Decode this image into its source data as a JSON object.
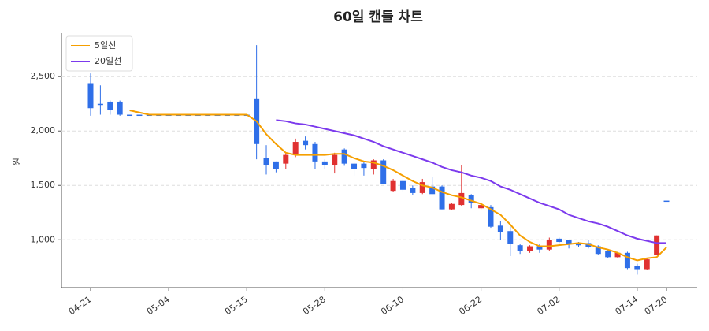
{
  "chart_data": {
    "type": "candlestick",
    "title": "60일 캔들 차트",
    "ylabel": "원",
    "categories": [
      "04-21",
      null,
      null,
      null,
      null,
      null,
      null,
      null,
      "05-04",
      null,
      null,
      null,
      null,
      null,
      null,
      null,
      "05-15",
      null,
      null,
      null,
      null,
      null,
      null,
      null,
      "05-28",
      null,
      null,
      null,
      null,
      null,
      null,
      null,
      "06-10",
      null,
      null,
      null,
      null,
      null,
      null,
      null,
      "06-22",
      null,
      null,
      null,
      null,
      null,
      null,
      null,
      "07-02",
      null,
      null,
      null,
      null,
      null,
      null,
      null,
      "07-14",
      null,
      null,
      "07-20"
    ],
    "open": [
      2440,
      2250,
      2270,
      2270,
      2150,
      2150,
      2150,
      2150,
      2150,
      2150,
      2150,
      2150,
      2150,
      2150,
      2150,
      2150,
      2150,
      2300,
      1750,
      1720,
      1700,
      1790,
      1910,
      1880,
      1720,
      1690,
      1830,
      1700,
      1700,
      1650,
      1730,
      1450,
      1540,
      1480,
      1430,
      1490,
      1490,
      1280,
      1320,
      1410,
      1290,
      1300,
      1130,
      1080,
      950,
      900,
      940,
      910,
      1010,
      1000,
      960,
      970,
      940,
      900,
      840,
      880,
      760,
      730,
      860,
      1360
    ],
    "high": [
      2530,
      2420,
      2280,
      2280,
      2150,
      2150,
      2150,
      2150,
      2150,
      2150,
      2150,
      2150,
      2150,
      2150,
      2150,
      2150,
      2150,
      2790,
      1870,
      1720,
      1800,
      1930,
      1950,
      1900,
      1740,
      1800,
      1840,
      1720,
      1720,
      1740,
      1740,
      1560,
      1560,
      1500,
      1560,
      1580,
      1500,
      1340,
      1690,
      1420,
      1340,
      1320,
      1170,
      1120,
      960,
      950,
      960,
      1020,
      1020,
      1000,
      980,
      1000,
      950,
      910,
      890,
      890,
      780,
      830,
      1040,
      1360
    ],
    "low": [
      2140,
      2150,
      2150,
      2140,
      2150,
      2150,
      2150,
      2150,
      2150,
      2150,
      2150,
      2150,
      2150,
      2150,
      2150,
      2150,
      2150,
      1740,
      1600,
      1620,
      1650,
      1760,
      1830,
      1650,
      1650,
      1610,
      1680,
      1590,
      1590,
      1600,
      1510,
      1440,
      1440,
      1410,
      1420,
      1420,
      1280,
      1270,
      1310,
      1290,
      1280,
      1110,
      1000,
      850,
      870,
      880,
      880,
      900,
      970,
      920,
      930,
      920,
      860,
      830,
      830,
      730,
      680,
      720,
      860,
      1360
    ],
    "close": [
      2210,
      2240,
      2190,
      2150,
      2150,
      2150,
      2150,
      2150,
      2150,
      2150,
      2150,
      2150,
      2150,
      2150,
      2150,
      2150,
      2150,
      1880,
      1690,
      1650,
      1780,
      1900,
      1870,
      1720,
      1690,
      1780,
      1700,
      1650,
      1660,
      1730,
      1510,
      1540,
      1460,
      1430,
      1530,
      1420,
      1280,
      1330,
      1430,
      1340,
      1320,
      1120,
      1070,
      960,
      900,
      940,
      910,
      1000,
      980,
      960,
      950,
      930,
      870,
      840,
      880,
      740,
      730,
      820,
      1040,
      1360
    ],
    "up_color": "#e03131",
    "down_color": "#2f6fe8",
    "series": [
      {
        "name": "5일선",
        "color": "#f59f00",
        "values": [
          null,
          null,
          null,
          null,
          2190,
          2170,
          2150,
          2150,
          2150,
          2150,
          2150,
          2150,
          2150,
          2150,
          2150,
          2150,
          2150,
          2090,
          1970,
          1880,
          1800,
          1780,
          1780,
          1780,
          1780,
          1790,
          1790,
          1750,
          1720,
          1710,
          1680,
          1640,
          1590,
          1540,
          1500,
          1480,
          1440,
          1410,
          1390,
          1360,
          1330,
          1280,
          1230,
          1140,
          1040,
          980,
          940,
          940,
          950,
          960,
          970,
          960,
          930,
          910,
          880,
          840,
          810,
          830,
          840,
          930
        ]
      },
      {
        "name": "20일선",
        "color": "#7c3aed",
        "values": [
          null,
          null,
          null,
          null,
          null,
          null,
          null,
          null,
          null,
          null,
          null,
          null,
          null,
          null,
          null,
          null,
          null,
          null,
          null,
          2100,
          2090,
          2070,
          2060,
          2040,
          2020,
          2000,
          1980,
          1960,
          1930,
          1900,
          1860,
          1830,
          1800,
          1770,
          1740,
          1710,
          1670,
          1640,
          1620,
          1590,
          1570,
          1540,
          1490,
          1460,
          1420,
          1380,
          1340,
          1310,
          1280,
          1230,
          1200,
          1170,
          1150,
          1120,
          1080,
          1040,
          1010,
          990,
          970,
          970
        ]
      }
    ],
    "ylim": [
      560,
      2900
    ],
    "yticks": [
      {
        "value": 1000,
        "label": "1,000"
      },
      {
        "value": 1500,
        "label": "1,500"
      },
      {
        "value": 2000,
        "label": "2,000"
      },
      {
        "value": 2500,
        "label": "2,500"
      }
    ],
    "grid": true,
    "legend": "upper left"
  }
}
